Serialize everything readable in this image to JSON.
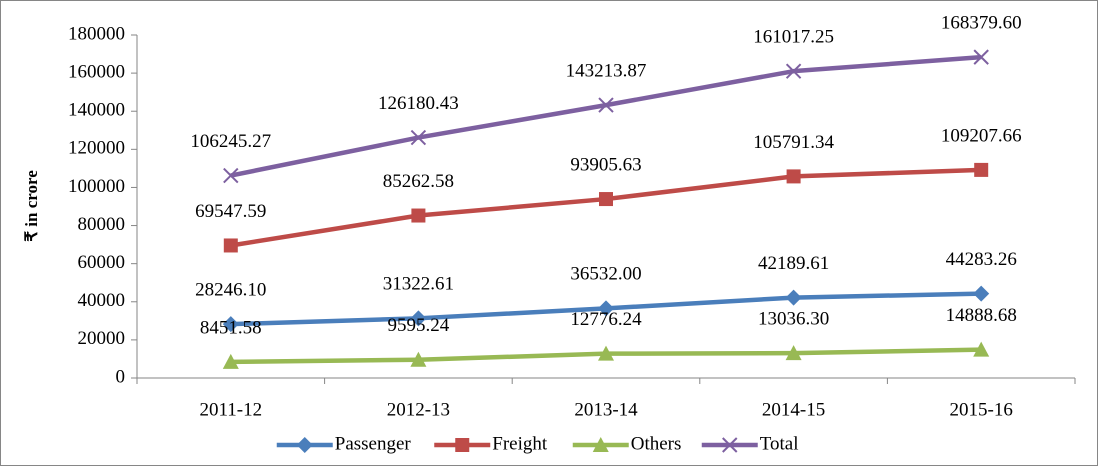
{
  "chart_data": {
    "type": "line",
    "ylabel": "₹ in crore",
    "categories": [
      "2011-12",
      "2012-13",
      "2013-14",
      "2014-15",
      "2015-16"
    ],
    "ylim": [
      0,
      180000
    ],
    "yticks": [
      0,
      20000,
      40000,
      60000,
      80000,
      100000,
      120000,
      140000,
      160000,
      180000
    ],
    "grid": false,
    "legend": "bottom",
    "series": [
      {
        "name": "Passenger",
        "color": "#4a7ebb",
        "marker": "diamond",
        "values": [
          28246.1,
          31322.61,
          36532,
          42189.61,
          44283.26
        ],
        "value_labels": [
          "28246.10",
          "31322.61",
          "36532.00",
          "42189.61",
          "44283.26"
        ]
      },
      {
        "name": "Freight",
        "color": "#be4b48",
        "marker": "square",
        "values": [
          69547.59,
          85262.58,
          93905.63,
          105791.34,
          109207.66
        ],
        "value_labels": [
          "69547.59",
          "85262.58",
          "93905.63",
          "105791.34",
          "109207.66"
        ]
      },
      {
        "name": "Others",
        "color": "#98b954",
        "marker": "triangle",
        "values": [
          8451.58,
          9595.24,
          12776.24,
          13036.3,
          14888.68
        ],
        "value_labels": [
          "8451.58",
          "9595.24",
          "12776.24",
          "13036.30",
          "14888.68"
        ]
      },
      {
        "name": "Total",
        "color": "#7d60a0",
        "marker": "x",
        "values": [
          106245.27,
          126180.43,
          143213.87,
          161017.25,
          168379.6
        ],
        "value_labels": [
          "106245.27",
          "126180.43",
          "143213.87",
          "161017.25",
          "168379.60"
        ]
      }
    ]
  }
}
